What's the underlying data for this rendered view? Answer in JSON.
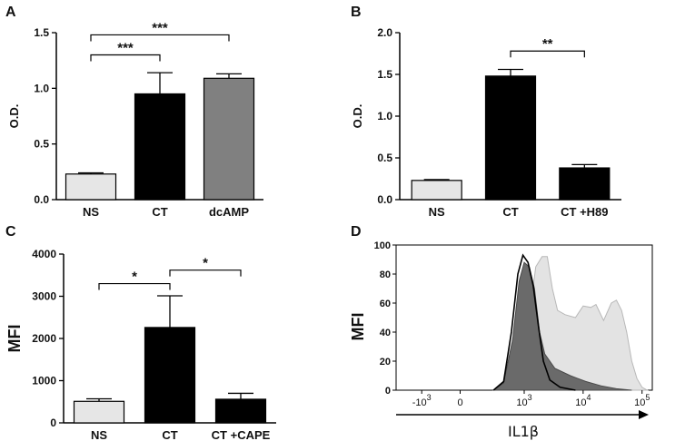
{
  "chart_data": [
    {
      "panel": "A",
      "type": "bar",
      "ylabel": "O.D.",
      "ylim": [
        0,
        1.5
      ],
      "yticks": [
        "0.0",
        "0.5",
        "1.0",
        "1.5"
      ],
      "categories": [
        "NS",
        "CT",
        "dcAMP"
      ],
      "values": [
        0.23,
        0.95,
        1.09
      ],
      "errors": [
        0.01,
        0.19,
        0.04
      ],
      "colors": [
        "#e6e6e6",
        "#000000",
        "#808080"
      ],
      "significance": [
        {
          "from": 0,
          "to": 1,
          "label": "***",
          "y": 1.3
        },
        {
          "from": 0,
          "to": 2,
          "label": "***",
          "y": 1.48
        }
      ]
    },
    {
      "panel": "B",
      "type": "bar",
      "ylabel": "O.D.",
      "ylim": [
        0,
        2.0
      ],
      "yticks": [
        "0.0",
        "0.5",
        "1.0",
        "1.5",
        "2.0"
      ],
      "categories": [
        "NS",
        "CT",
        "CT +H89"
      ],
      "values": [
        0.23,
        1.48,
        0.38
      ],
      "errors": [
        0.01,
        0.08,
        0.04
      ],
      "colors": [
        "#e6e6e6",
        "#000000",
        "#000000"
      ],
      "significance": [
        {
          "from": 1,
          "to": 2,
          "label": "**",
          "y": 1.78
        }
      ]
    },
    {
      "panel": "C",
      "type": "bar",
      "ylabel": "MFI",
      "ylim": [
        0,
        4000
      ],
      "yticks": [
        "0",
        "1000",
        "2000",
        "3000",
        "4000"
      ],
      "categories": [
        "NS",
        "CT",
        "CT +CAPE"
      ],
      "values": [
        510,
        2260,
        560
      ],
      "errors": [
        60,
        750,
        140
      ],
      "colors": [
        "#e6e6e6",
        "#000000",
        "#000000"
      ],
      "significance": [
        {
          "from": 0,
          "to": 1,
          "label": "*",
          "y": 3300
        },
        {
          "from": 1,
          "to": 2,
          "label": "*",
          "y": 3620
        }
      ]
    },
    {
      "panel": "D",
      "type": "area",
      "ylabel": "MFI",
      "xlabel": "IL1β",
      "ylim": [
        0,
        100
      ],
      "yticks": [
        "0",
        "20",
        "40",
        "60",
        "80",
        "100"
      ],
      "xticks": [
        {
          "base": "-10",
          "exp": "3"
        },
        {
          "base": "0",
          "exp": ""
        },
        {
          "base": "10",
          "exp": "3"
        },
        {
          "base": "10",
          "exp": "4"
        },
        {
          "base": "10",
          "exp": "5"
        }
      ],
      "series": [
        {
          "name": "light histogram",
          "color": "#e3e3e3",
          "points": [
            [
              0.4,
              1
            ],
            [
              0.45,
              3
            ],
            [
              0.49,
              15
            ],
            [
              0.52,
              50
            ],
            [
              0.545,
              85
            ],
            [
              0.57,
              92
            ],
            [
              0.59,
              92
            ],
            [
              0.61,
              70
            ],
            [
              0.63,
              55
            ],
            [
              0.66,
              52
            ],
            [
              0.7,
              50
            ],
            [
              0.73,
              58
            ],
            [
              0.76,
              57
            ],
            [
              0.78,
              59
            ],
            [
              0.81,
              48
            ],
            [
              0.84,
              60
            ],
            [
              0.86,
              62
            ],
            [
              0.88,
              55
            ],
            [
              0.9,
              40
            ],
            [
              0.92,
              20
            ],
            [
              0.94,
              8
            ],
            [
              0.96,
              2
            ],
            [
              0.98,
              0
            ]
          ]
        },
        {
          "name": "dark histogram",
          "color": "#6a6a6a",
          "points": [
            [
              0.38,
              0
            ],
            [
              0.42,
              5
            ],
            [
              0.455,
              35
            ],
            [
              0.48,
              75
            ],
            [
              0.5,
              88
            ],
            [
              0.52,
              85
            ],
            [
              0.54,
              70
            ],
            [
              0.56,
              40
            ],
            [
              0.58,
              25
            ],
            [
              0.62,
              15
            ],
            [
              0.68,
              10
            ],
            [
              0.74,
              6
            ],
            [
              0.8,
              3
            ],
            [
              0.86,
              1
            ],
            [
              0.92,
              0
            ]
          ]
        },
        {
          "name": "outline histogram",
          "color": "#000000",
          "points": [
            [
              0.38,
              0
            ],
            [
              0.42,
              6
            ],
            [
              0.45,
              40
            ],
            [
              0.475,
              80
            ],
            [
              0.495,
              93
            ],
            [
              0.515,
              88
            ],
            [
              0.535,
              72
            ],
            [
              0.555,
              45
            ],
            [
              0.575,
              20
            ],
            [
              0.6,
              7
            ],
            [
              0.64,
              2
            ],
            [
              0.7,
              0
            ]
          ]
        }
      ]
    }
  ],
  "panel_labels": [
    "A",
    "B",
    "C",
    "D"
  ]
}
